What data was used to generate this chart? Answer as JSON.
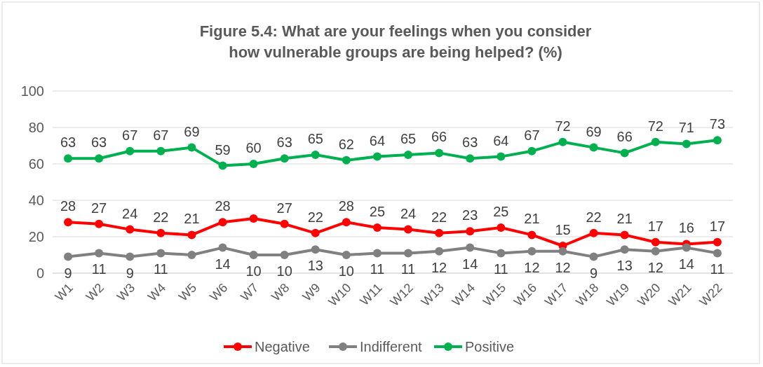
{
  "chart_data": {
    "type": "line",
    "title": "Figure 5.4: What are your feelings when you consider how vulnerable groups are being helped? (%)",
    "categories": [
      "W1",
      "W2",
      "W3",
      "W4",
      "W5",
      "W6",
      "W7",
      "W8",
      "W9",
      "W10",
      "W11",
      "W12",
      "W13",
      "W14",
      "W15",
      "W16",
      "W17",
      "W18",
      "W19",
      "W20",
      "W21",
      "W22"
    ],
    "series": [
      {
        "name": "Negative",
        "color": "#ff0000",
        "values": [
          28,
          27,
          24,
          22,
          21,
          28,
          30,
          27,
          22,
          28,
          25,
          24,
          22,
          23,
          25,
          21,
          15,
          22,
          21,
          17,
          16,
          17
        ],
        "value_labels": [
          "28",
          "27",
          "24",
          "22",
          "21",
          "28",
          null,
          "27",
          "22",
          "28",
          "25",
          "24",
          "22",
          "23",
          "25",
          "21",
          "15",
          "22",
          "21",
          "17",
          "16",
          "17"
        ]
      },
      {
        "name": "Indifferent",
        "color": "#808080",
        "values": [
          9,
          11,
          9,
          11,
          10,
          14,
          10,
          10,
          13,
          10,
          11,
          11,
          12,
          14,
          11,
          12,
          12,
          9,
          13,
          12,
          14,
          11
        ],
        "value_labels": [
          "9",
          "11",
          "9",
          "11",
          null,
          "14",
          "10",
          "10",
          "13",
          "10",
          "11",
          "11",
          "12",
          "14",
          "11",
          "12",
          "12",
          "9",
          "13",
          "12",
          "14",
          "11"
        ]
      },
      {
        "name": "Positive",
        "color": "#00b050",
        "values": [
          63,
          63,
          67,
          67,
          69,
          59,
          60,
          63,
          65,
          62,
          64,
          65,
          66,
          63,
          64,
          67,
          72,
          69,
          66,
          72,
          71,
          73
        ],
        "value_labels": [
          "63",
          "63",
          "67",
          "67",
          "69",
          "59",
          "60",
          "63",
          "65",
          "62",
          "64",
          "65",
          "66",
          "63",
          "64",
          "67",
          "72",
          "69",
          "66",
          "72",
          "71",
          "73"
        ]
      }
    ],
    "ylim": [
      0,
      100
    ],
    "yticks": [
      0,
      20,
      40,
      60,
      80,
      100
    ],
    "grid": "y",
    "legend": "bottom",
    "marker": "circle",
    "line_style": "solid"
  }
}
